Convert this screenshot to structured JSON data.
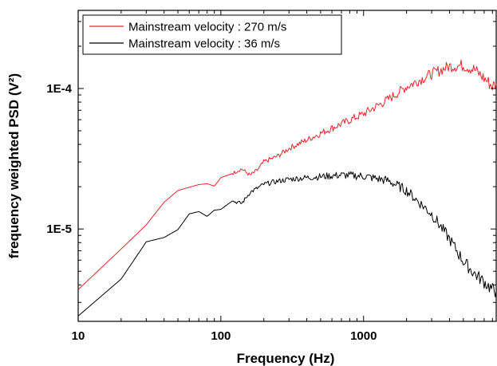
{
  "chart_data": {
    "type": "line",
    "title": "",
    "xlabel": "Frequency (Hz)",
    "ylabel": "frequency weighted PSD (V²)",
    "xscale": "log",
    "yscale": "log",
    "xlim": [
      10,
      8500
    ],
    "ylim": [
      2.2e-06,
      0.00036
    ],
    "grid": false,
    "legend_position": "top-left",
    "x_ticks": [
      {
        "value": 10,
        "label": "10"
      },
      {
        "value": 100,
        "label": "100"
      },
      {
        "value": 1000,
        "label": "1000"
      }
    ],
    "y_ticks": [
      {
        "value": 1e-05,
        "label": "1E-5"
      },
      {
        "value": 0.0001,
        "label": "1E-4"
      }
    ],
    "series": [
      {
        "name": "Mainstream velocity : 270 m/s",
        "color": "#e8262b",
        "x": [
          10,
          20,
          30,
          40,
          50,
          60,
          70,
          80,
          90,
          100,
          120,
          140,
          160,
          180,
          200,
          250,
          300,
          400,
          500,
          700,
          1000,
          1500,
          2000,
          3000,
          4000,
          5000,
          6000,
          7000,
          8000,
          8500
        ],
        "y": [
          3.7e-06,
          7.2e-06,
          1.07e-05,
          1.55e-05,
          1.88e-05,
          1.98e-05,
          2.07e-05,
          2.1e-05,
          2.02e-05,
          2.32e-05,
          2.48e-05,
          2.68e-05,
          2.41e-05,
          2.62e-05,
          3e-05,
          3.3e-05,
          3.75e-05,
          4.3e-05,
          4.8e-05,
          5.6e-05,
          6.6e-05,
          8.4e-05,
          0.000103,
          0.000127,
          0.000144,
          0.000146,
          0.000136,
          0.000118,
          0.000104,
          0.000108
        ]
      },
      {
        "name": "Mainstream velocity : 36 m/s",
        "color": "#000000",
        "x": [
          10,
          20,
          30,
          40,
          50,
          60,
          70,
          80,
          90,
          100,
          120,
          140,
          160,
          180,
          200,
          250,
          300,
          400,
          500,
          700,
          1000,
          1500,
          2000,
          3000,
          4000,
          5000,
          6000,
          7000,
          8000,
          8500
        ],
        "y": [
          2.4e-06,
          4.4e-06,
          8.1e-06,
          8.7e-06,
          9.9e-06,
          1.28e-05,
          1.33e-05,
          1.23e-05,
          1.36e-05,
          1.38e-05,
          1.58e-05,
          1.52e-05,
          1.82e-05,
          1.95e-05,
          2.08e-05,
          2.19e-05,
          2.26e-05,
          2.32e-05,
          2.36e-05,
          2.42e-05,
          2.38e-05,
          2.2e-05,
          1.88e-05,
          1.28e-05,
          8.5e-06,
          5.9e-06,
          4.8e-06,
          4.2e-06,
          3.7e-06,
          3.6e-06
        ]
      }
    ]
  }
}
